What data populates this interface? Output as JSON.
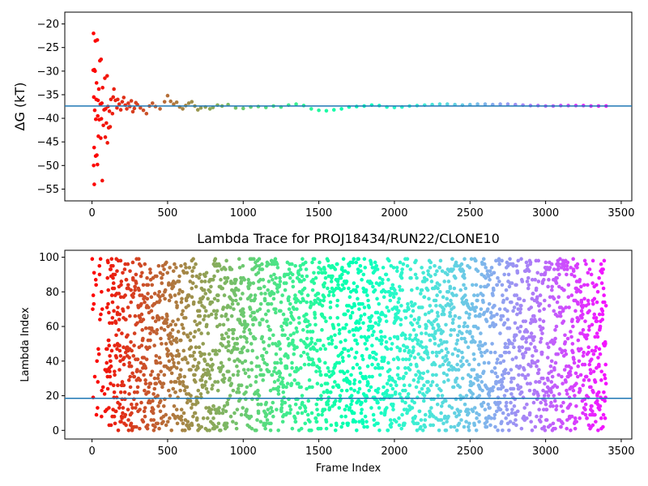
{
  "chart_data": [
    {
      "type": "scatter",
      "title": "",
      "xlabel": "",
      "ylabel": "ΔG (kT)",
      "xlim": [
        -180,
        3570
      ],
      "ylim": [
        -57.5,
        -17.5
      ],
      "xticks": [
        0,
        500,
        1000,
        1500,
        2000,
        2500,
        3000,
        3500
      ],
      "yticks": [
        -20,
        -25,
        -30,
        -35,
        -40,
        -45,
        -50,
        -55
      ],
      "grid": false,
      "colormap": "rainbow (reversed: red at low frame index, violet at high)",
      "colormap_range": [
        0,
        3400
      ],
      "hline": {
        "y": -37.4,
        "color": "#1f77b4"
      },
      "points": [
        [
          10,
          -22.0
        ],
        [
          22,
          -23.6
        ],
        [
          35,
          -23.4
        ],
        [
          52,
          -27.8
        ],
        [
          60,
          -27.5
        ],
        [
          8,
          -29.8
        ],
        [
          15,
          -29.7
        ],
        [
          20,
          -30.0
        ],
        [
          30,
          -32.5
        ],
        [
          45,
          -33.8
        ],
        [
          70,
          -33.5
        ],
        [
          85,
          -31.5
        ],
        [
          100,
          -31.0
        ],
        [
          12,
          -35.5
        ],
        [
          28,
          -36.0
        ],
        [
          40,
          -36.2
        ],
        [
          55,
          -37.0
        ],
        [
          65,
          -36.8
        ],
        [
          80,
          -38.2
        ],
        [
          90,
          -38.0
        ],
        [
          18,
          -38.3
        ],
        [
          38,
          -39.5
        ],
        [
          48,
          -40.3
        ],
        [
          62,
          -40.1
        ],
        [
          75,
          -41.5
        ],
        [
          95,
          -41.0
        ],
        [
          110,
          -42.0
        ],
        [
          120,
          -41.8
        ],
        [
          25,
          -40.2
        ],
        [
          42,
          -43.8
        ],
        [
          58,
          -44.2
        ],
        [
          88,
          -44.0
        ],
        [
          102,
          -45.2
        ],
        [
          14,
          -46.2
        ],
        [
          32,
          -47.8
        ],
        [
          24,
          -48.0
        ],
        [
          11,
          -50.0
        ],
        [
          36,
          -49.8
        ],
        [
          15,
          -54.0
        ],
        [
          68,
          -53.2
        ],
        [
          105,
          -37.5
        ],
        [
          115,
          -38.5
        ],
        [
          125,
          -36.0
        ],
        [
          135,
          -39.0
        ],
        [
          140,
          -35.5
        ],
        [
          145,
          -33.8
        ],
        [
          155,
          -36.2
        ],
        [
          165,
          -37.8
        ],
        [
          170,
          -36.0
        ],
        [
          180,
          -37.0
        ],
        [
          190,
          -38.2
        ],
        [
          200,
          -36.5
        ],
        [
          210,
          -35.6
        ],
        [
          220,
          -37.2
        ],
        [
          230,
          -38.0
        ],
        [
          240,
          -36.8
        ],
        [
          250,
          -37.5
        ],
        [
          260,
          -36.3
        ],
        [
          270,
          -38.6
        ],
        [
          280,
          -37.9
        ],
        [
          290,
          -36.7
        ],
        [
          300,
          -37.1
        ],
        [
          320,
          -37.8
        ],
        [
          340,
          -38.3
        ],
        [
          360,
          -39.0
        ],
        [
          380,
          -37.4
        ],
        [
          400,
          -36.8
        ],
        [
          420,
          -37.5
        ],
        [
          450,
          -38.0
        ],
        [
          480,
          -36.5
        ],
        [
          500,
          -35.2
        ],
        [
          520,
          -36.4
        ],
        [
          540,
          -37.0
        ],
        [
          560,
          -36.6
        ],
        [
          580,
          -37.6
        ],
        [
          600,
          -38.0
        ],
        [
          620,
          -37.3
        ],
        [
          640,
          -36.8
        ],
        [
          660,
          -36.5
        ],
        [
          680,
          -37.4
        ],
        [
          700,
          -38.2
        ],
        [
          720,
          -37.8
        ],
        [
          750,
          -37.6
        ],
        [
          780,
          -38.0
        ],
        [
          800,
          -37.7
        ],
        [
          830,
          -37.2
        ],
        [
          860,
          -37.4
        ],
        [
          900,
          -37.1
        ],
        [
          950,
          -37.8
        ],
        [
          1000,
          -37.9
        ],
        [
          1050,
          -37.6
        ],
        [
          1100,
          -37.5
        ],
        [
          1150,
          -37.7
        ],
        [
          1200,
          -37.4
        ],
        [
          1250,
          -37.6
        ],
        [
          1300,
          -37.2
        ],
        [
          1350,
          -37.0
        ],
        [
          1400,
          -37.3
        ],
        [
          1450,
          -38.0
        ],
        [
          1500,
          -38.3
        ],
        [
          1550,
          -38.4
        ],
        [
          1600,
          -38.2
        ],
        [
          1650,
          -38.0
        ],
        [
          1700,
          -37.6
        ],
        [
          1750,
          -37.5
        ],
        [
          1800,
          -37.4
        ],
        [
          1850,
          -37.2
        ],
        [
          1900,
          -37.3
        ],
        [
          1950,
          -37.6
        ],
        [
          2000,
          -37.7
        ],
        [
          2050,
          -37.6
        ],
        [
          2100,
          -37.4
        ],
        [
          2150,
          -37.3
        ],
        [
          2200,
          -37.2
        ],
        [
          2250,
          -37.1
        ],
        [
          2300,
          -37.0
        ],
        [
          2350,
          -37.0
        ],
        [
          2400,
          -37.1
        ],
        [
          2450,
          -37.2
        ],
        [
          2500,
          -37.1
        ],
        [
          2550,
          -37.0
        ],
        [
          2600,
          -37.0
        ],
        [
          2650,
          -37.1
        ],
        [
          2700,
          -37.0
        ],
        [
          2750,
          -37.0
        ],
        [
          2800,
          -37.1
        ],
        [
          2850,
          -37.2
        ],
        [
          2900,
          -37.3
        ],
        [
          2950,
          -37.3
        ],
        [
          3000,
          -37.4
        ],
        [
          3050,
          -37.4
        ],
        [
          3100,
          -37.3
        ],
        [
          3150,
          -37.3
        ],
        [
          3200,
          -37.3
        ],
        [
          3250,
          -37.3
        ],
        [
          3300,
          -37.4
        ],
        [
          3350,
          -37.4
        ],
        [
          3400,
          -37.4
        ]
      ]
    },
    {
      "type": "scatter",
      "title": "Lambda Trace for PROJ18434/RUN22/CLONE10",
      "xlabel": "Frame Index",
      "ylabel": "Lambda Index",
      "xlim": [
        -180,
        3570
      ],
      "ylim": [
        -5,
        104
      ],
      "xticks": [
        0,
        500,
        1000,
        1500,
        2000,
        2500,
        3000,
        3500
      ],
      "yticks": [
        0,
        20,
        40,
        60,
        80,
        100
      ],
      "grid": false,
      "colormap": "rainbow (reversed: red at low frame index, violet at high)",
      "colormap_range": [
        0,
        3400
      ],
      "hline": {
        "y": 18.5,
        "color": "#1f77b4"
      },
      "frame_range": [
        0,
        3400
      ],
      "lambda_range": [
        0,
        99
      ],
      "distribution": "approximately uniform over lambda index 0–99 at every frame; sparse near frames 0–100, dense thereafter",
      "n_points": 3400
    }
  ]
}
